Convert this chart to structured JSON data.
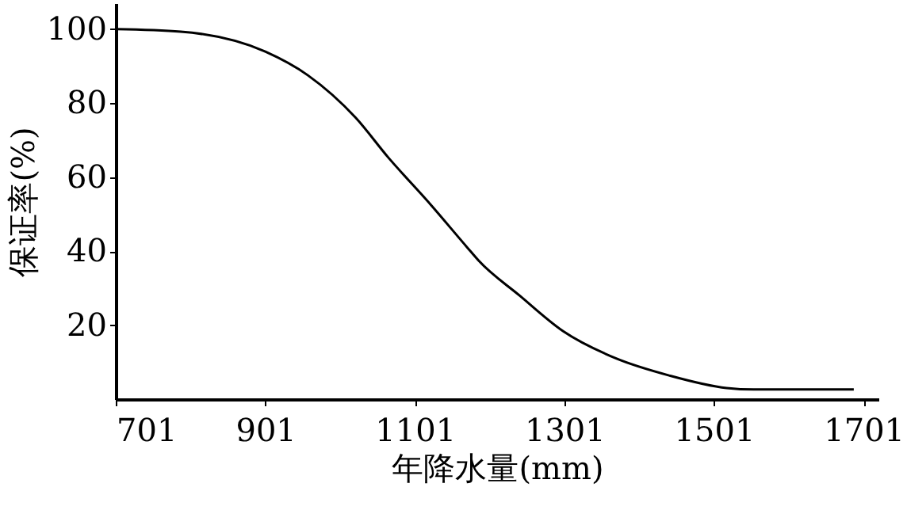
{
  "chart_data": {
    "type": "line",
    "xlabel": "年降水量(mm)",
    "ylabel": "保证率(%)",
    "x": [
      701,
      788,
      901,
      958,
      1022,
      1065,
      1122,
      1171,
      1186,
      1241,
      1299,
      1369,
      1441,
      1518,
      1554,
      1688
    ],
    "series": [
      {
        "color": "#000000",
        "values": [
          100,
          99.3,
          93.9,
          87.5,
          76,
          65.4,
          52.6,
          41,
          37.5,
          28,
          18.4,
          11.1,
          6.4,
          3,
          2.6,
          2.6
        ]
      }
    ],
    "xlim": [
      701,
      1721
    ],
    "ylim": [
      0,
      107
    ],
    "xticks": [
      701,
      901,
      1101,
      1301,
      1501,
      1701
    ],
    "yticks": [
      20,
      40,
      60,
      80,
      100
    ],
    "grid": false,
    "marker": "none",
    "line_style": "solid"
  }
}
